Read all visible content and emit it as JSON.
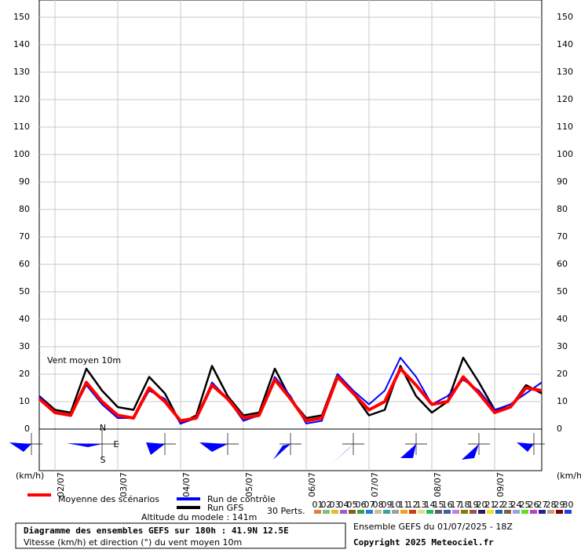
{
  "chart_data": {
    "type": "line",
    "annotation": "Vent moyen 10m",
    "y_unit_left": "(km/h)",
    "y_unit_right": "(km/h)",
    "x": [
      0,
      6,
      12,
      18,
      24,
      30,
      36,
      42,
      48,
      54,
      60,
      66,
      72,
      78,
      84,
      90,
      96,
      102,
      108,
      114,
      120,
      126,
      132,
      138,
      144,
      150,
      156,
      162,
      168,
      174,
      180,
      186,
      192
    ],
    "xlim": [
      0,
      192
    ],
    "xticks": [
      {
        "value": 6,
        "label": "02/07"
      },
      {
        "value": 30,
        "label": "03/07"
      },
      {
        "value": 54,
        "label": "04/07"
      },
      {
        "value": 78,
        "label": "05/07"
      },
      {
        "value": 102,
        "label": "06/07"
      },
      {
        "value": 126,
        "label": "07/07"
      },
      {
        "value": 150,
        "label": "08/07"
      },
      {
        "value": 174,
        "label": "09/07"
      }
    ],
    "ylim": [
      0,
      150
    ],
    "yticks": [
      0,
      10,
      20,
      30,
      40,
      50,
      60,
      70,
      80,
      90,
      100,
      110,
      120,
      130,
      140,
      150
    ],
    "grid": true,
    "series": [
      {
        "name": "Run GFS",
        "color": "#000000",
        "width": 2.5,
        "values": [
          12,
          7,
          6,
          22,
          14,
          8,
          7,
          19,
          13,
          2,
          5,
          23,
          12,
          5,
          6,
          22,
          11,
          4,
          5,
          20,
          13,
          5,
          7,
          23,
          12,
          6,
          10,
          26,
          17,
          7,
          8,
          16,
          13
        ]
      },
      {
        "name": "Run de contrôle",
        "color": "#0000ff",
        "width": 2,
        "values": [
          12,
          6,
          5,
          16,
          9,
          4,
          4,
          14,
          11,
          2,
          4,
          17,
          11,
          3,
          5,
          19,
          12,
          2,
          3,
          20,
          14,
          9,
          14,
          26,
          19,
          9,
          12,
          18,
          14,
          7,
          9,
          13,
          17
        ]
      },
      {
        "name": "Moyenne des scénarios",
        "color": "#ff0000",
        "width": 4,
        "values": [
          11,
          6,
          5,
          17,
          10,
          5,
          4,
          15,
          10,
          3,
          4,
          16,
          11,
          4,
          5,
          18,
          11,
          3,
          4,
          19,
          13,
          7,
          10,
          22,
          16,
          9,
          10,
          19,
          13,
          6,
          8,
          15,
          14
        ]
      }
    ],
    "members_label": "30 Perts.",
    "members": [
      {
        "name": "01",
        "color": "#e08040"
      },
      {
        "name": "02",
        "color": "#80c080"
      },
      {
        "name": "03",
        "color": "#e0c020"
      },
      {
        "name": "04",
        "color": "#a060c0"
      },
      {
        "name": "05",
        "color": "#806020"
      },
      {
        "name": "06",
        "color": "#40a040"
      },
      {
        "name": "07",
        "color": "#2080e0"
      },
      {
        "name": "08",
        "color": "#d0c090"
      },
      {
        "name": "09",
        "color": "#40a0a0"
      },
      {
        "name": "10",
        "color": "#a0a0a0"
      },
      {
        "name": "11",
        "color": "#f0a020"
      },
      {
        "name": "12",
        "color": "#c04020"
      },
      {
        "name": "13",
        "color": "#e0e080"
      },
      {
        "name": "14",
        "color": "#20c060"
      },
      {
        "name": "15",
        "color": "#606060"
      },
      {
        "name": "16",
        "color": "#4060a0"
      },
      {
        "name": "17",
        "color": "#c080e0"
      },
      {
        "name": "18",
        "color": "#808000"
      },
      {
        "name": "19",
        "color": "#a05050"
      },
      {
        "name": "20",
        "color": "#202060"
      },
      {
        "name": "21",
        "color": "#f0e020"
      },
      {
        "name": "22",
        "color": "#2060c0"
      },
      {
        "name": "23",
        "color": "#806040"
      },
      {
        "name": "24",
        "color": "#a0a0e0"
      },
      {
        "name": "25",
        "color": "#60e020"
      },
      {
        "name": "26",
        "color": "#c040c0"
      },
      {
        "name": "27",
        "color": "#2020a0"
      },
      {
        "name": "28",
        "color": "#c0a080"
      },
      {
        "name": "29",
        "color": "#800000"
      },
      {
        "name": "30",
        "color": "#2040e0"
      }
    ],
    "altitude": "Altitude du modele : 141m",
    "title": "Diagramme des ensembles GEFS sur 180h : 41.9N 12.5E",
    "subtitle": "Vitesse (km/h) et direction (°) du vent moyen 10m",
    "run_info": "Ensemble GEFS du 01/07/2025 - 18Z",
    "copyright": "Copyright 2025 Meteociel.fr",
    "compass": [
      "N",
      "E",
      "S"
    ]
  }
}
